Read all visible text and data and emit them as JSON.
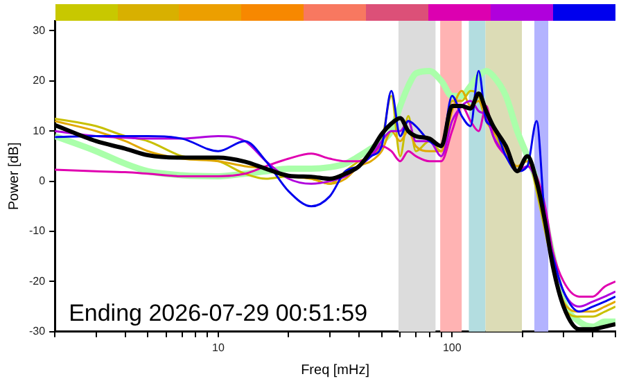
{
  "chart_data": {
    "type": "line",
    "xlabel": "Freq [mHz]",
    "ylabel": "Power [dB]",
    "log": "x",
    "xlim": [
      2,
      500
    ],
    "xticks": [
      {
        "value": 2,
        "label": null
      },
      {
        "value": 3,
        "label": null
      },
      {
        "value": 4,
        "label": null
      },
      {
        "value": 5,
        "label": null
      },
      {
        "value": 6,
        "label": null
      },
      {
        "value": 7,
        "label": null
      },
      {
        "value": 8,
        "label": null
      },
      {
        "value": 9,
        "label": null
      },
      10,
      {
        "value": 20,
        "label": null
      },
      {
        "value": 30,
        "label": null
      },
      {
        "value": 40,
        "label": null
      },
      {
        "value": 50,
        "label": null
      },
      {
        "value": 60,
        "label": null
      },
      {
        "value": 70,
        "label": null
      },
      {
        "value": 80,
        "label": null
      },
      {
        "value": 90,
        "label": null
      },
      100,
      {
        "value": 200,
        "label": null
      },
      {
        "value": 300,
        "label": null
      },
      {
        "value": 400,
        "label": null
      },
      {
        "value": 500,
        "label": null
      }
    ],
    "ylim": [
      -30,
      32
    ],
    "yticks": [
      -30,
      -20,
      -10,
      0,
      10,
      20,
      30
    ],
    "x": [
      2,
      3,
      4,
      5,
      7,
      10,
      13,
      16,
      20,
      25,
      30,
      35,
      40,
      45,
      50,
      55,
      60,
      65,
      70,
      80,
      90,
      100,
      110,
      120,
      130,
      140,
      150,
      170,
      190,
      210,
      230,
      250,
      270,
      300,
      350,
      400,
      450,
      500
    ],
    "series": [
      {
        "color": "#aaffaa",
        "values": [
          9,
          6,
          3.5,
          2,
          1.2,
          1,
          1.5,
          2,
          2.5,
          2.5,
          2.8,
          3.5,
          5,
          6.5,
          8,
          10,
          15,
          19,
          21.5,
          22,
          20,
          17,
          17,
          19,
          21,
          22,
          21,
          17,
          10,
          5,
          0,
          null,
          -15,
          -24,
          -28,
          -29,
          -28,
          -28
        ]
      },
      {
        "color": "#c8c000",
        "values": [
          12.5,
          11,
          9,
          8,
          5,
          4,
          1.5,
          0.5,
          1,
          0.5,
          -0.5,
          2,
          4,
          5,
          8,
          17,
          5,
          13,
          6,
          8,
          6,
          16,
          16,
          18,
          17,
          12,
          10,
          5,
          2,
          5,
          -2,
          -10,
          -17,
          -25,
          -27,
          -27,
          -26,
          -25
        ]
      },
      {
        "color": "#e0a800",
        "values": [
          12,
          10,
          8,
          6,
          4.5,
          4,
          3,
          2.5,
          1,
          0.5,
          -0.5,
          0.5,
          3,
          4,
          6,
          10,
          8,
          10,
          7,
          6,
          6,
          14,
          18,
          15,
          16,
          12,
          10,
          6,
          3,
          4,
          -1,
          -9,
          -17,
          -24,
          -26,
          -26,
          -25,
          -24
        ]
      },
      {
        "color": "#e000b0",
        "values": [
          2.3,
          2,
          1.8,
          1.5,
          1,
          1,
          1.5,
          3,
          4.5,
          5.5,
          4.5,
          4,
          4,
          5,
          7,
          6,
          4,
          6,
          5,
          4,
          4,
          10,
          15,
          12,
          10,
          15,
          9,
          5,
          2,
          3,
          1,
          -5,
          -14,
          -20,
          -23,
          -23,
          -21,
          -20
        ]
      },
      {
        "color": "#b000dd",
        "values": [
          10,
          9,
          8.7,
          8.5,
          8.5,
          9,
          8,
          4,
          0.5,
          -0.5,
          0,
          1,
          3,
          5,
          8,
          10,
          10,
          12,
          8,
          8,
          5,
          12,
          15,
          16,
          14,
          13,
          9,
          5,
          2,
          3,
          0,
          -6,
          -15,
          -22,
          -25,
          -24,
          -23,
          -22
        ]
      },
      {
        "color": "#0000ee",
        "values": [
          8.8,
          9,
          9,
          9,
          8.5,
          6,
          8,
          4,
          -2,
          -5,
          -3,
          2,
          3,
          5,
          7,
          18,
          9,
          12,
          11,
          8,
          7,
          17,
          13,
          11,
          22,
          12,
          11,
          5,
          2,
          3,
          12,
          -8,
          -15,
          -22,
          -26,
          -25,
          -24,
          -23
        ]
      },
      {
        "color": "#000000",
        "values": [
          11.2,
          8,
          6.5,
          5.2,
          4.7,
          4.7,
          3.9,
          2.5,
          1.1,
          0.9,
          0.5,
          1.5,
          3,
          6,
          9.4,
          11.5,
          12.6,
          10,
          9,
          8.5,
          7,
          15,
          15,
          14.5,
          17.5,
          14,
          11,
          7,
          2,
          5,
          0,
          -8,
          -17,
          -25,
          -29.5,
          -29.5,
          -29,
          -28.5
        ]
      }
    ],
    "bands": [
      {
        "axis": "x",
        "from": 59,
        "to": 85,
        "color": "#dcdcdc"
      },
      {
        "axis": "x",
        "from": 89,
        "to": 110,
        "color": "#ffb3b3"
      },
      {
        "axis": "x",
        "from": 118,
        "to": 139,
        "color": "#b3dde0"
      },
      {
        "axis": "x",
        "from": 139,
        "to": 199,
        "color": "#dcdcb6"
      },
      {
        "axis": "x",
        "from": 225,
        "to": 258,
        "color": "#b3b3ff"
      }
    ],
    "annotations": [
      "Ending 2026-07-29 00:51:59"
    ]
  }
}
